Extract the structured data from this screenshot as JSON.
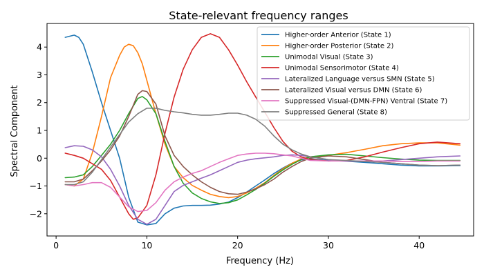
{
  "chart_data": {
    "type": "line",
    "title": "State-relevant frequency ranges",
    "xlabel": "Frequency (Hz)",
    "ylabel": "Spectral Component",
    "xlim": [
      -1,
      46
    ],
    "ylim": [
      -2.8,
      4.85
    ],
    "xticks": [
      0,
      10,
      20,
      30,
      40
    ],
    "yticks": [
      -2,
      -1,
      0,
      1,
      2,
      3,
      4
    ],
    "grid": false,
    "legend_position": "top-right",
    "series": [
      {
        "name": "Higher-order Anterior (State 1)",
        "color": "#1f77b4",
        "points": [
          [
            1,
            4.35
          ],
          [
            2,
            4.43
          ],
          [
            2.5,
            4.35
          ],
          [
            3,
            4.1
          ],
          [
            4,
            3.1
          ],
          [
            5,
            2.0
          ],
          [
            6,
            1.0
          ],
          [
            7,
            0.0
          ],
          [
            8,
            -1.4
          ],
          [
            9,
            -2.3
          ],
          [
            10,
            -2.4
          ],
          [
            11,
            -2.35
          ],
          [
            12,
            -2.0
          ],
          [
            13,
            -1.8
          ],
          [
            14,
            -1.72
          ],
          [
            15,
            -1.7
          ],
          [
            16,
            -1.7
          ],
          [
            17,
            -1.69
          ],
          [
            18,
            -1.65
          ],
          [
            19,
            -1.58
          ],
          [
            20,
            -1.42
          ],
          [
            21,
            -1.22
          ],
          [
            22,
            -1.0
          ],
          [
            23,
            -0.78
          ],
          [
            24,
            -0.55
          ],
          [
            25,
            -0.35
          ],
          [
            26,
            -0.18
          ],
          [
            27,
            -0.06
          ],
          [
            28,
            -0.03
          ],
          [
            30,
            -0.08
          ],
          [
            32,
            -0.11
          ],
          [
            34,
            -0.15
          ],
          [
            36,
            -0.2
          ],
          [
            38,
            -0.25
          ],
          [
            40,
            -0.28
          ],
          [
            42,
            -0.28
          ],
          [
            44.5,
            -0.27
          ]
        ]
      },
      {
        "name": "Higher-order Posterior (State 2)",
        "color": "#ff7f0e",
        "points": [
          [
            1,
            -0.95
          ],
          [
            2,
            -1.0
          ],
          [
            3,
            -0.75
          ],
          [
            4,
            0.2
          ],
          [
            5,
            1.5
          ],
          [
            6,
            2.9
          ],
          [
            7,
            3.7
          ],
          [
            7.5,
            4.0
          ],
          [
            8,
            4.1
          ],
          [
            8.5,
            4.05
          ],
          [
            9,
            3.8
          ],
          [
            9.5,
            3.4
          ],
          [
            10,
            2.8
          ],
          [
            11,
            1.6
          ],
          [
            12,
            0.5
          ],
          [
            13,
            -0.3
          ],
          [
            14,
            -0.7
          ],
          [
            15,
            -0.98
          ],
          [
            16,
            -1.15
          ],
          [
            17,
            -1.3
          ],
          [
            18,
            -1.38
          ],
          [
            19,
            -1.42
          ],
          [
            20,
            -1.38
          ],
          [
            21,
            -1.25
          ],
          [
            22,
            -1.08
          ],
          [
            23,
            -0.88
          ],
          [
            24,
            -0.62
          ],
          [
            25,
            -0.38
          ],
          [
            26,
            -0.18
          ],
          [
            27,
            -0.03
          ],
          [
            28,
            0.05
          ],
          [
            30,
            0.1
          ],
          [
            32,
            0.2
          ],
          [
            34,
            0.32
          ],
          [
            36,
            0.45
          ],
          [
            38,
            0.52
          ],
          [
            40,
            0.55
          ],
          [
            42,
            0.55
          ],
          [
            44.5,
            0.47
          ]
        ]
      },
      {
        "name": "Unimodal Visual (State 3)",
        "color": "#2ca02c",
        "points": [
          [
            1,
            -0.7
          ],
          [
            2,
            -0.68
          ],
          [
            3,
            -0.6
          ],
          [
            4,
            -0.3
          ],
          [
            5,
            0.1
          ],
          [
            6,
            0.5
          ],
          [
            7,
            1.0
          ],
          [
            8,
            1.6
          ],
          [
            9,
            2.15
          ],
          [
            9.5,
            2.22
          ],
          [
            10,
            2.1
          ],
          [
            11,
            1.6
          ],
          [
            12,
            0.6
          ],
          [
            13,
            -0.3
          ],
          [
            14,
            -0.9
          ],
          [
            15,
            -1.25
          ],
          [
            16,
            -1.45
          ],
          [
            17,
            -1.57
          ],
          [
            18,
            -1.63
          ],
          [
            19,
            -1.6
          ],
          [
            20,
            -1.5
          ],
          [
            21,
            -1.32
          ],
          [
            22,
            -1.12
          ],
          [
            23,
            -0.9
          ],
          [
            24,
            -0.65
          ],
          [
            25,
            -0.42
          ],
          [
            26,
            -0.22
          ],
          [
            27,
            -0.05
          ],
          [
            28,
            0.05
          ],
          [
            30,
            0.12
          ],
          [
            32,
            0.14
          ],
          [
            34,
            0.08
          ],
          [
            36,
            0.02
          ],
          [
            38,
            -0.03
          ],
          [
            40,
            -0.07
          ],
          [
            42,
            -0.08
          ],
          [
            44.5,
            -0.08
          ]
        ]
      },
      {
        "name": "Unimodal Sensorimotor (State 4)",
        "color": "#d62728",
        "points": [
          [
            1,
            0.18
          ],
          [
            2,
            0.1
          ],
          [
            3,
            0.0
          ],
          [
            4,
            -0.2
          ],
          [
            5,
            -0.4
          ],
          [
            6,
            -0.8
          ],
          [
            7,
            -1.4
          ],
          [
            8,
            -2.0
          ],
          [
            8.5,
            -2.2
          ],
          [
            9,
            -2.15
          ],
          [
            10,
            -1.7
          ],
          [
            11,
            -0.6
          ],
          [
            12,
            0.9
          ],
          [
            13,
            2.2
          ],
          [
            14,
            3.2
          ],
          [
            15,
            3.9
          ],
          [
            16,
            4.35
          ],
          [
            17,
            4.48
          ],
          [
            18,
            4.35
          ],
          [
            19,
            3.9
          ],
          [
            20,
            3.35
          ],
          [
            21,
            2.75
          ],
          [
            22,
            2.2
          ],
          [
            23,
            1.65
          ],
          [
            24,
            1.1
          ],
          [
            25,
            0.6
          ],
          [
            26,
            0.25
          ],
          [
            27,
            0.05
          ],
          [
            28,
            -0.05
          ],
          [
            30,
            -0.1
          ],
          [
            32,
            -0.08
          ],
          [
            34,
            0.05
          ],
          [
            36,
            0.22
          ],
          [
            38,
            0.38
          ],
          [
            40,
            0.52
          ],
          [
            42,
            0.58
          ],
          [
            44.5,
            0.52
          ]
        ]
      },
      {
        "name": "Lateralized Language versus SMN (State 5)",
        "color": "#9467bd",
        "points": [
          [
            1,
            0.38
          ],
          [
            2,
            0.45
          ],
          [
            3,
            0.43
          ],
          [
            4,
            0.3
          ],
          [
            5,
            0.05
          ],
          [
            6,
            -0.4
          ],
          [
            7,
            -1.0
          ],
          [
            8,
            -1.7
          ],
          [
            9,
            -2.2
          ],
          [
            10,
            -2.38
          ],
          [
            11,
            -2.2
          ],
          [
            12,
            -1.7
          ],
          [
            13,
            -1.2
          ],
          [
            14,
            -0.98
          ],
          [
            15,
            -0.85
          ],
          [
            16,
            -0.72
          ],
          [
            17,
            -0.6
          ],
          [
            18,
            -0.45
          ],
          [
            19,
            -0.3
          ],
          [
            20,
            -0.15
          ],
          [
            21,
            -0.07
          ],
          [
            22,
            -0.02
          ],
          [
            24,
            0.05
          ],
          [
            25,
            0.1
          ],
          [
            26,
            0.12
          ],
          [
            27,
            0.1
          ],
          [
            28,
            0.05
          ],
          [
            30,
            -0.05
          ],
          [
            32,
            -0.1
          ],
          [
            34,
            -0.12
          ],
          [
            36,
            -0.1
          ],
          [
            38,
            -0.05
          ],
          [
            40,
            0.0
          ],
          [
            42,
            0.05
          ],
          [
            44.5,
            0.08
          ]
        ]
      },
      {
        "name": "Lateralized Visual versus DMN (State 6)",
        "color": "#8c564b",
        "points": [
          [
            1,
            -0.85
          ],
          [
            2,
            -0.85
          ],
          [
            3,
            -0.75
          ],
          [
            4,
            -0.45
          ],
          [
            5,
            -0.1
          ],
          [
            6,
            0.3
          ],
          [
            7,
            0.8
          ],
          [
            8,
            1.5
          ],
          [
            9,
            2.3
          ],
          [
            9.5,
            2.43
          ],
          [
            10,
            2.4
          ],
          [
            11,
            1.95
          ],
          [
            12,
            0.8
          ],
          [
            13,
            0.1
          ],
          [
            14,
            -0.3
          ],
          [
            15,
            -0.6
          ],
          [
            16,
            -0.85
          ],
          [
            17,
            -1.05
          ],
          [
            18,
            -1.2
          ],
          [
            19,
            -1.28
          ],
          [
            20,
            -1.3
          ],
          [
            21,
            -1.22
          ],
          [
            22,
            -1.1
          ],
          [
            23,
            -0.95
          ],
          [
            24,
            -0.75
          ],
          [
            25,
            -0.5
          ],
          [
            26,
            -0.3
          ],
          [
            27,
            -0.12
          ],
          [
            28,
            0.0
          ],
          [
            30,
            0.08
          ],
          [
            32,
            0.05
          ],
          [
            34,
            -0.05
          ],
          [
            36,
            -0.15
          ],
          [
            38,
            -0.2
          ],
          [
            40,
            -0.25
          ],
          [
            42,
            -0.27
          ],
          [
            44.5,
            -0.25
          ]
        ]
      },
      {
        "name": "Suppressed Visual-(DMN-FPN) Ventral (State 7)",
        "color": "#e377c2",
        "points": [
          [
            1,
            -0.95
          ],
          [
            2,
            -1.0
          ],
          [
            3,
            -0.95
          ],
          [
            4,
            -0.88
          ],
          [
            5,
            -0.88
          ],
          [
            6,
            -1.05
          ],
          [
            7,
            -1.4
          ],
          [
            8,
            -1.75
          ],
          [
            9,
            -1.92
          ],
          [
            10,
            -1.88
          ],
          [
            11,
            -1.6
          ],
          [
            12,
            -1.15
          ],
          [
            13,
            -0.85
          ],
          [
            14,
            -0.68
          ],
          [
            15,
            -0.55
          ],
          [
            16,
            -0.45
          ],
          [
            17,
            -0.3
          ],
          [
            18,
            -0.15
          ],
          [
            19,
            -0.02
          ],
          [
            20,
            0.1
          ],
          [
            21,
            0.15
          ],
          [
            22,
            0.18
          ],
          [
            23,
            0.18
          ],
          [
            24,
            0.16
          ],
          [
            25,
            0.12
          ],
          [
            26,
            0.08
          ],
          [
            27,
            0.0
          ],
          [
            28,
            -0.08
          ],
          [
            30,
            -0.1
          ],
          [
            32,
            -0.1
          ],
          [
            34,
            -0.1
          ],
          [
            36,
            -0.1
          ],
          [
            38,
            -0.12
          ],
          [
            40,
            -0.12
          ],
          [
            42,
            -0.1
          ],
          [
            44.5,
            -0.1
          ]
        ]
      },
      {
        "name": "Suppressed General (State 8)",
        "color": "#7f7f7f",
        "points": [
          [
            1,
            -0.95
          ],
          [
            2,
            -0.95
          ],
          [
            3,
            -0.85
          ],
          [
            4,
            -0.5
          ],
          [
            5,
            -0.05
          ],
          [
            6,
            0.4
          ],
          [
            7,
            0.85
          ],
          [
            8,
            1.3
          ],
          [
            9,
            1.6
          ],
          [
            10,
            1.8
          ],
          [
            11,
            1.8
          ],
          [
            12,
            1.72
          ],
          [
            13,
            1.67
          ],
          [
            14,
            1.63
          ],
          [
            15,
            1.58
          ],
          [
            16,
            1.55
          ],
          [
            17,
            1.55
          ],
          [
            18,
            1.58
          ],
          [
            19,
            1.62
          ],
          [
            20,
            1.62
          ],
          [
            21,
            1.55
          ],
          [
            22,
            1.4
          ],
          [
            23,
            1.15
          ],
          [
            24,
            0.8
          ],
          [
            25,
            0.5
          ],
          [
            26,
            0.3
          ],
          [
            27,
            0.15
          ],
          [
            28,
            0.05
          ],
          [
            30,
            -0.05
          ],
          [
            32,
            -0.08
          ],
          [
            34,
            -0.12
          ],
          [
            36,
            -0.15
          ],
          [
            38,
            -0.2
          ],
          [
            40,
            -0.25
          ],
          [
            42,
            -0.27
          ],
          [
            44.5,
            -0.25
          ]
        ]
      }
    ]
  }
}
